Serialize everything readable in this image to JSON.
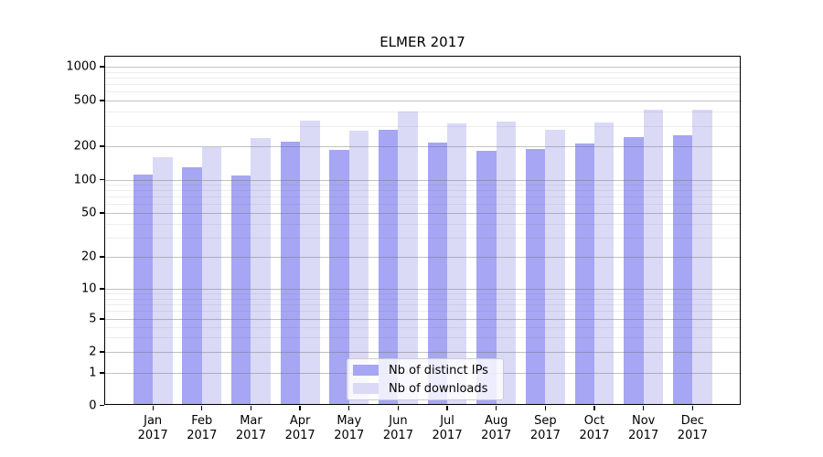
{
  "chart_data": {
    "type": "bar",
    "title": "ELMER 2017",
    "categories": [
      "Jan",
      "Feb",
      "Mar",
      "Apr",
      "May",
      "Jun",
      "Jul",
      "Aug",
      "Sep",
      "Oct",
      "Nov",
      "Dec"
    ],
    "category_year": "2017",
    "series": [
      {
        "name": "Nb of distinct IPs",
        "color": "#a6a6f4",
        "values": [
          112,
          130,
          110,
          220,
          185,
          280,
          215,
          183,
          190,
          210,
          240,
          250
        ]
      },
      {
        "name": "Nb of downloads",
        "color": "#dadaf7",
        "values": [
          160,
          195,
          235,
          335,
          275,
          400,
          315,
          330,
          280,
          320,
          420,
          420
        ]
      }
    ],
    "yscale": "log above 1, compressed linear 0-1 (symlog-like)",
    "y_ticks": [
      0,
      1,
      2,
      5,
      10,
      20,
      50,
      100,
      200,
      500,
      1000
    ],
    "y_minor_ticks": [
      3,
      4,
      6,
      7,
      8,
      9,
      30,
      40,
      60,
      70,
      80,
      90,
      300,
      400,
      600,
      700,
      800,
      900
    ],
    "ylim": [
      0,
      1250
    ],
    "grid": true,
    "legend_position": "lower center inside plot"
  },
  "colors": {
    "axis": "#000000",
    "grid_major": "#c8c8c8",
    "grid_minor": "#ebebeb",
    "background": "#ffffff",
    "legend_border": "#cccccc"
  }
}
